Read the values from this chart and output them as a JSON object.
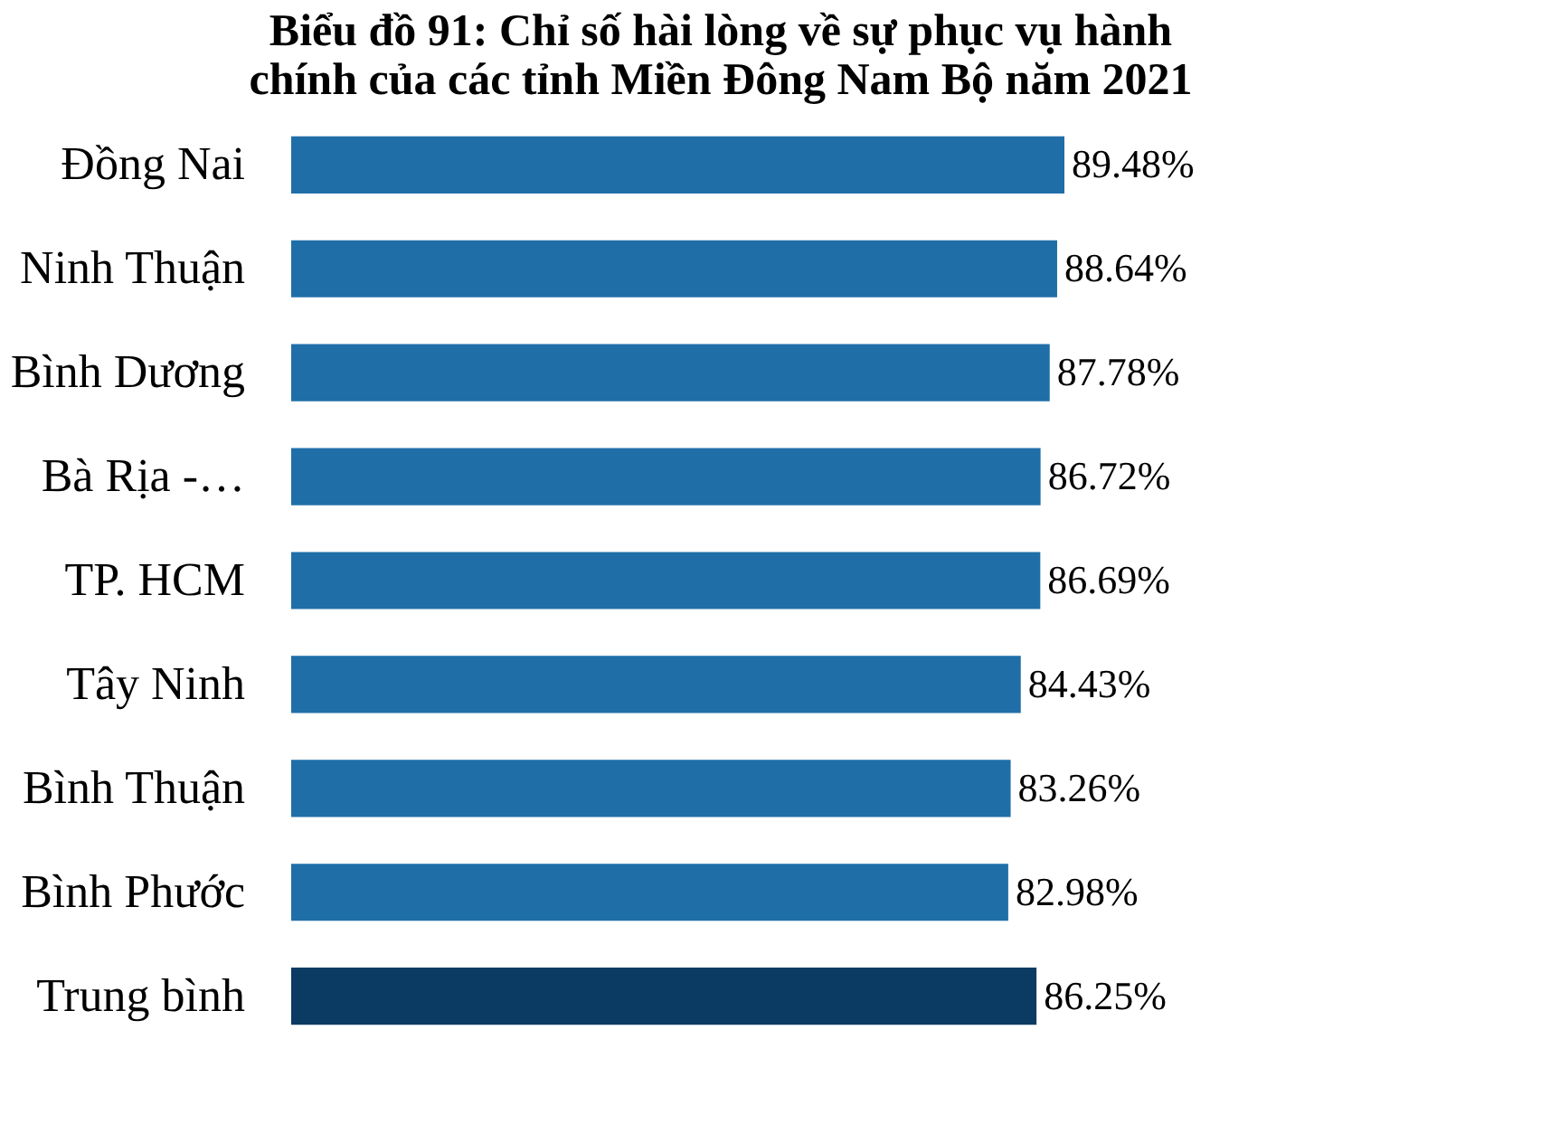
{
  "chart_data": {
    "type": "bar",
    "orientation": "horizontal",
    "title": "Biểu đồ 91: Chỉ số hài lòng về sự phục vụ hành chính của các tỉnh Miền Đông Nam Bộ năm 2021",
    "categories": [
      "Đồng Nai",
      "Ninh Thuận",
      "Bình Dương",
      "Bà Rịa -…",
      "TP. HCM",
      "Tây Ninh",
      "Bình Thuận",
      "Bình Phước",
      "Trung bình"
    ],
    "values": [
      89.48,
      88.64,
      87.78,
      86.72,
      86.69,
      84.43,
      83.26,
      82.98,
      86.25
    ],
    "value_labels": [
      "89.48%",
      "88.64%",
      "87.78%",
      "86.72%",
      "86.69%",
      "84.43%",
      "83.26%",
      "82.98%",
      "86.25%"
    ],
    "colors": [
      "#1f6ea8",
      "#1f6ea8",
      "#1f6ea8",
      "#1f6ea8",
      "#1f6ea8",
      "#1f6ea8",
      "#1f6ea8",
      "#1f6ea8",
      "#0b3a63"
    ],
    "grid": false,
    "legend": false
  }
}
